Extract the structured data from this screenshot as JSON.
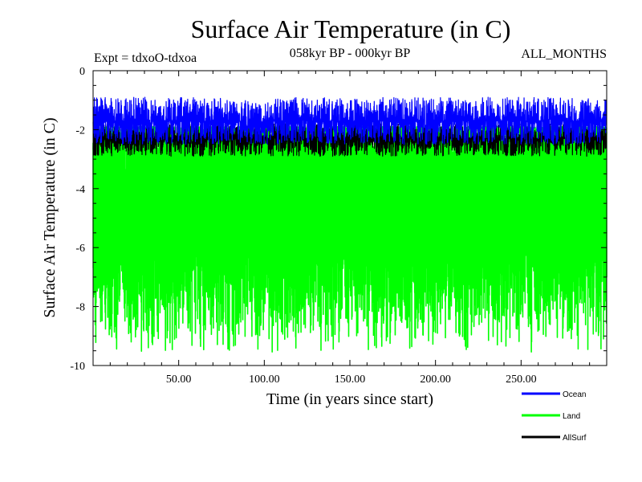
{
  "chart_data": {
    "type": "line",
    "title": "Surface Air Temperature (in C)",
    "subtitle": "058kyr BP - 000kyr BP",
    "experiment": "Expt = tdxoO-tdxoa",
    "months": "ALL_MONTHS",
    "xlabel": "Time (in years since start)",
    "ylabel": "Surface Air Temperature (in C)",
    "xlim": [
      0,
      300
    ],
    "ylim": [
      -10,
      0
    ],
    "x_ticks": [
      50,
      100,
      150,
      200,
      250
    ],
    "x_tick_labels": [
      "50.00",
      "100.00",
      "150.00",
      "200.00",
      "250.00"
    ],
    "y_ticks": [
      0,
      -2,
      -4,
      -6,
      -8,
      -10
    ],
    "y_tick_labels": [
      "0",
      "-2",
      "-4",
      "-6",
      "-8",
      "-10"
    ],
    "grid": false,
    "legend_position": "bottom-right",
    "series": [
      {
        "name": "Ocean",
        "color": "#0000ff",
        "mean": -1.7,
        "range": [
          -2.5,
          -0.9
        ]
      },
      {
        "name": "Land",
        "color": "#00ff00",
        "mean": -5.5,
        "range": [
          -9.6,
          -1.9
        ]
      },
      {
        "name": "AllSurf",
        "color": "#000000",
        "mean": -2.3,
        "range": [
          -2.9,
          -1.8
        ]
      }
    ]
  }
}
